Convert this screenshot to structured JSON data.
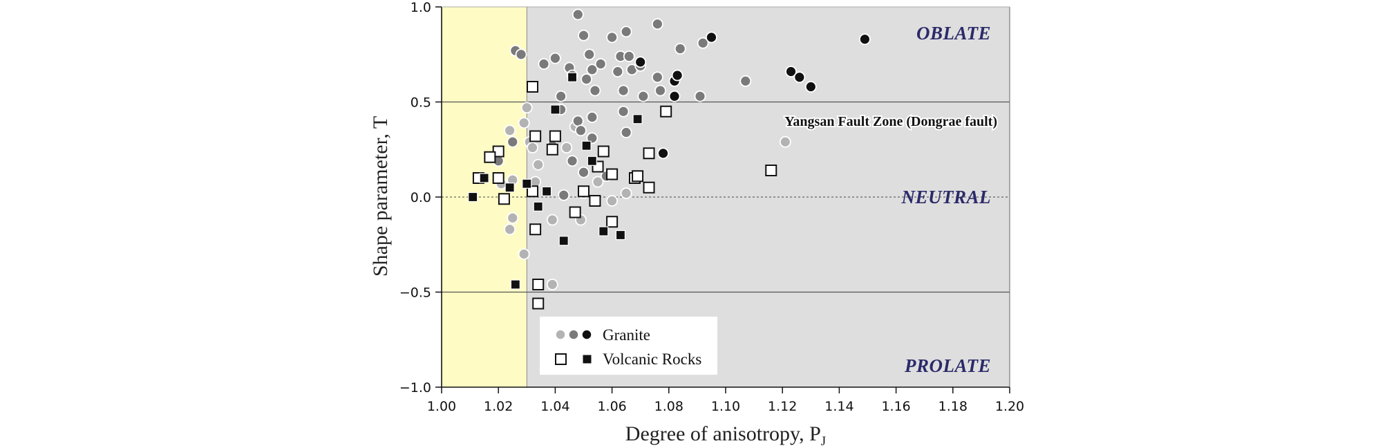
{
  "chart_data": {
    "type": "scatter",
    "xlabel": "Degree of anisotropy, P",
    "xlabel_sub": "J",
    "ylabel": "Shape parameter, T",
    "xlim": [
      1.0,
      1.2
    ],
    "ylim": [
      -1.0,
      1.0
    ],
    "x_ticks": [
      "1.00",
      "1.02",
      "1.04",
      "1.06",
      "1.08",
      "1.10",
      "1.12",
      "1.14",
      "1.16",
      "1.18",
      "1.20"
    ],
    "y_ticks": [
      "1.0",
      "0.5",
      "0.0",
      "−0.5",
      "−1.0"
    ],
    "shaded_region": {
      "x_from": 1.0,
      "x_to": 1.03,
      "color": "#fefcc4"
    },
    "background_color": "#dedede",
    "reference_lines": [
      0.5,
      0.0,
      -0.5
    ],
    "region_labels": {
      "oblate": "OBLATE",
      "neutral": "NEUTRAL",
      "prolate": "PROLATE"
    },
    "annotation": "Yangsan Fault Zone (Dongrae fault)",
    "legend": {
      "position": "bottom-left",
      "entries": [
        {
          "label": "Granite",
          "markers": [
            "circle-light",
            "circle-medium",
            "circle-dark"
          ]
        },
        {
          "label": "Volcanic Rocks",
          "markers": [
            "square-open",
            "square-filled"
          ]
        }
      ]
    },
    "colors": {
      "circle-light": "#b3b3b3",
      "circle-medium": "#7a7a7a",
      "circle-dark": "#111111",
      "square-filled": "#111111"
    },
    "series": [
      {
        "name": "Granite",
        "marker": "circle-light",
        "points": [
          [
            1.03,
            0.47
          ],
          [
            1.029,
            0.39
          ],
          [
            1.031,
            0.29
          ],
          [
            1.032,
            0.26
          ],
          [
            1.034,
            0.17
          ],
          [
            1.024,
            0.35
          ],
          [
            1.025,
            0.09
          ],
          [
            1.021,
            0.07
          ],
          [
            1.033,
            0.08
          ],
          [
            1.025,
            -0.11
          ],
          [
            1.024,
            -0.17
          ],
          [
            1.029,
            -0.3
          ],
          [
            1.039,
            -0.12
          ],
          [
            1.039,
            -0.46
          ],
          [
            1.044,
            0.26
          ],
          [
            1.047,
            0.37
          ],
          [
            1.05,
            0.02
          ],
          [
            1.055,
            0.08
          ],
          [
            1.049,
            -0.12
          ],
          [
            1.06,
            -0.02
          ],
          [
            1.065,
            0.02
          ],
          [
            1.121,
            0.29
          ]
        ]
      },
      {
        "name": "Granite",
        "marker": "circle-medium",
        "points": [
          [
            1.026,
            0.77
          ],
          [
            1.028,
            0.75
          ],
          [
            1.036,
            0.7
          ],
          [
            1.04,
            0.73
          ],
          [
            1.045,
            0.68
          ],
          [
            1.046,
            0.64
          ],
          [
            1.048,
            0.96
          ],
          [
            1.05,
            0.85
          ],
          [
            1.052,
            0.75
          ],
          [
            1.053,
            0.67
          ],
          [
            1.051,
            0.62
          ],
          [
            1.054,
            0.56
          ],
          [
            1.056,
            0.7
          ],
          [
            1.06,
            0.84
          ],
          [
            1.062,
            0.66
          ],
          [
            1.063,
            0.74
          ],
          [
            1.065,
            0.87
          ],
          [
            1.066,
            0.74
          ],
          [
            1.067,
            0.67
          ],
          [
            1.07,
            0.69
          ],
          [
            1.064,
            0.56
          ],
          [
            1.071,
            0.53
          ],
          [
            1.076,
            0.63
          ],
          [
            1.077,
            0.56
          ],
          [
            1.076,
            0.91
          ],
          [
            1.084,
            0.78
          ],
          [
            1.092,
            0.81
          ],
          [
            1.091,
            0.53
          ],
          [
            1.107,
            0.61
          ],
          [
            1.042,
            0.53
          ],
          [
            1.042,
            0.46
          ],
          [
            1.048,
            0.4
          ],
          [
            1.053,
            0.42
          ],
          [
            1.049,
            0.35
          ],
          [
            1.053,
            0.31
          ],
          [
            1.064,
            0.45
          ],
          [
            1.065,
            0.34
          ],
          [
            1.039,
            0.27
          ],
          [
            1.025,
            0.29
          ],
          [
            1.02,
            0.19
          ],
          [
            1.046,
            0.19
          ],
          [
            1.05,
            0.13
          ],
          [
            1.058,
            0.11
          ],
          [
            1.043,
            0.01
          ]
        ]
      },
      {
        "name": "Granite",
        "marker": "circle-dark",
        "points": [
          [
            1.07,
            0.71
          ],
          [
            1.082,
            0.61
          ],
          [
            1.082,
            0.53
          ],
          [
            1.083,
            0.64
          ],
          [
            1.095,
            0.84
          ],
          [
            1.123,
            0.66
          ],
          [
            1.126,
            0.63
          ],
          [
            1.13,
            0.58
          ],
          [
            1.149,
            0.83
          ],
          [
            1.078,
            0.23
          ]
        ]
      },
      {
        "name": "Volcanic Rocks",
        "marker": "square-open",
        "points": [
          [
            1.032,
            0.58
          ],
          [
            1.079,
            0.45
          ],
          [
            1.033,
            0.32
          ],
          [
            1.04,
            0.32
          ],
          [
            1.039,
            0.25
          ],
          [
            1.057,
            0.24
          ],
          [
            1.073,
            0.23
          ],
          [
            1.02,
            0.24
          ],
          [
            1.017,
            0.21
          ],
          [
            1.013,
            0.1
          ],
          [
            1.02,
            0.1
          ],
          [
            1.022,
            -0.01
          ],
          [
            1.032,
            0.03
          ],
          [
            1.05,
            0.03
          ],
          [
            1.055,
            0.16
          ],
          [
            1.06,
            0.12
          ],
          [
            1.068,
            0.1
          ],
          [
            1.069,
            0.11
          ],
          [
            1.073,
            0.05
          ],
          [
            1.054,
            -0.02
          ],
          [
            1.047,
            -0.08
          ],
          [
            1.06,
            -0.13
          ],
          [
            1.033,
            -0.17
          ],
          [
            1.034,
            -0.46
          ],
          [
            1.034,
            -0.56
          ],
          [
            1.116,
            0.14
          ]
        ]
      },
      {
        "name": "Volcanic Rocks",
        "marker": "square-filled",
        "points": [
          [
            1.046,
            0.63
          ],
          [
            1.04,
            0.46
          ],
          [
            1.051,
            0.27
          ],
          [
            1.053,
            0.19
          ],
          [
            1.069,
            0.41
          ],
          [
            1.015,
            0.1
          ],
          [
            1.03,
            0.07
          ],
          [
            1.024,
            0.05
          ],
          [
            1.037,
            0.03
          ],
          [
            1.011,
            0.0
          ],
          [
            1.034,
            -0.05
          ],
          [
            1.043,
            -0.23
          ],
          [
            1.057,
            -0.18
          ],
          [
            1.063,
            -0.2
          ],
          [
            1.026,
            -0.46
          ]
        ]
      }
    ]
  }
}
